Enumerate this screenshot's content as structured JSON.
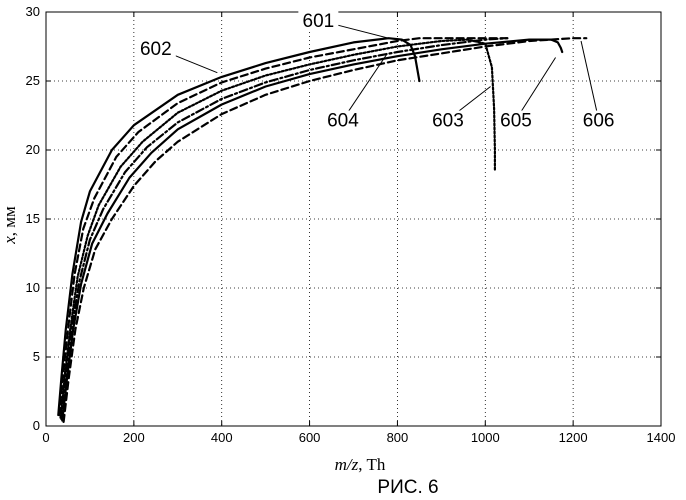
{
  "chart_data": {
    "type": "line",
    "xlabel_var": "m/z",
    "xlabel_unit": ", Th",
    "ylabel_var": "x",
    "ylabel_unit": ", мм",
    "caption": "РИС. 6",
    "xlim": [
      0,
      1400
    ],
    "ylim": [
      0,
      30
    ],
    "x_ticks": [
      0,
      200,
      400,
      600,
      800,
      1000,
      1200,
      1400
    ],
    "y_ticks": [
      0,
      5,
      10,
      15,
      20,
      25,
      30
    ],
    "grid": true,
    "series": [
      {
        "name": "601",
        "style": "solid",
        "x": [
          28,
          35,
          45,
          60,
          80,
          100,
          150,
          200,
          300,
          400,
          500,
          600,
          700,
          780,
          810,
          830,
          840,
          845,
          850
        ],
        "y": [
          0.8,
          3.5,
          7.0,
          11.0,
          14.8,
          17.0,
          20.0,
          21.8,
          24.0,
          25.3,
          26.3,
          27.1,
          27.8,
          28.1,
          28.0,
          27.6,
          26.8,
          25.9,
          25.0
        ]
      },
      {
        "name": "602",
        "style": "dashed",
        "x": [
          30,
          38,
          50,
          65,
          85,
          110,
          160,
          210,
          300,
          400,
          500,
          600,
          700,
          800,
          850,
          900,
          950,
          1000,
          1050
        ],
        "y": [
          0.8,
          3.5,
          7.0,
          11.0,
          14.3,
          16.5,
          19.5,
          21.3,
          23.4,
          24.9,
          25.9,
          26.7,
          27.3,
          27.9,
          28.1,
          28.1,
          28.1,
          28.1,
          28.1
        ]
      },
      {
        "name": "603",
        "style": "dotted",
        "x": [
          33,
          42,
          55,
          72,
          95,
          120,
          170,
          220,
          300,
          400,
          500,
          600,
          700,
          800,
          900,
          960,
          1000,
          1015,
          1020,
          1022,
          1022
        ],
        "y": [
          0.6,
          3.5,
          7.0,
          10.8,
          13.8,
          16.0,
          18.8,
          20.6,
          22.7,
          24.3,
          25.4,
          26.2,
          26.9,
          27.5,
          27.9,
          28.0,
          27.7,
          26.0,
          23.0,
          20.0,
          18.5
        ]
      },
      {
        "name": "604",
        "style": "dashdot",
        "x": [
          35,
          45,
          58,
          76,
          100,
          130,
          180,
          230,
          300,
          400,
          500,
          600,
          700,
          800,
          900,
          1000,
          1050
        ],
        "y": [
          0.5,
          3.5,
          7.0,
          10.5,
          13.5,
          15.7,
          18.4,
          20.2,
          22.0,
          23.7,
          24.9,
          25.8,
          26.5,
          27.1,
          27.6,
          28.0,
          28.1
        ]
      },
      {
        "name": "605",
        "style": "solid",
        "x": [
          37,
          48,
          62,
          80,
          105,
          140,
          190,
          240,
          300,
          400,
          500,
          600,
          700,
          800,
          900,
          1000,
          1100,
          1150,
          1165,
          1172,
          1175
        ],
        "y": [
          0.4,
          3.5,
          7.0,
          10.3,
          13.2,
          15.4,
          18.0,
          19.8,
          21.5,
          23.3,
          24.6,
          25.5,
          26.2,
          26.8,
          27.3,
          27.7,
          28.0,
          28.0,
          27.8,
          27.4,
          27.1
        ]
      },
      {
        "name": "606",
        "style": "dashed",
        "x": [
          40,
          52,
          67,
          86,
          112,
          150,
          200,
          250,
          300,
          400,
          500,
          600,
          700,
          800,
          900,
          1000,
          1100,
          1150,
          1200,
          1230
        ],
        "y": [
          0.3,
          3.5,
          7.0,
          10.0,
          12.8,
          15.0,
          17.4,
          19.2,
          20.6,
          22.6,
          24.0,
          25.0,
          25.8,
          26.5,
          27.0,
          27.5,
          27.9,
          28.0,
          28.1,
          28.1
        ]
      }
    ],
    "annotations": [
      {
        "text": "601",
        "x": 620,
        "y": 28.9,
        "tip_x": 780,
        "tip_y": 28.1
      },
      {
        "text": "602",
        "x": 250,
        "y": 26.9,
        "tip_x": 390,
        "tip_y": 25.6
      },
      {
        "text": "604",
        "x": 676,
        "y": 21.7,
        "tip_x": 775,
        "tip_y": 26.9
      },
      {
        "text": "603",
        "x": 915,
        "y": 21.7,
        "tip_x": 1012,
        "tip_y": 24.6
      },
      {
        "text": "605",
        "x": 1070,
        "y": 21.7,
        "tip_x": 1160,
        "tip_y": 26.7
      },
      {
        "text": "606",
        "x": 1258,
        "y": 21.7,
        "tip_x": 1218,
        "tip_y": 27.9
      }
    ]
  }
}
